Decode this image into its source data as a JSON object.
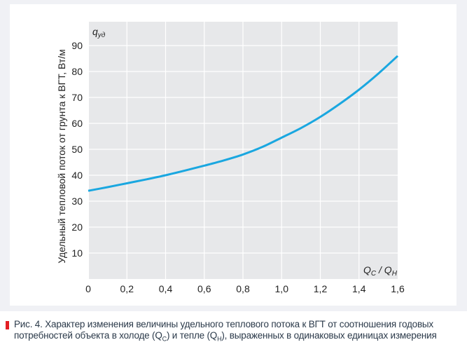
{
  "chart_data": {
    "type": "line",
    "ylabel": "Удельный тепловой поток от грунта к ВГТ, Вт/м",
    "y_axis_symbol": "q",
    "y_axis_symbol_sub": "уд",
    "x_axis_symbol": "Q",
    "x_axis_symbol_sub1": "C",
    "x_axis_symbol_sep": " / Q",
    "x_axis_symbol_sub2": "H",
    "xlim": [
      0,
      1.6
    ],
    "ylim": [
      0,
      95
    ],
    "xticks": [
      "0",
      "0,2",
      "0,4",
      "0,6",
      "0,8",
      "1,0",
      "1,2",
      "1,4",
      "1,6"
    ],
    "yticks": [
      "10",
      "20",
      "30",
      "40",
      "50",
      "60",
      "70",
      "80",
      "90"
    ],
    "grid": true,
    "color": "#1aa7e0",
    "series": [
      {
        "name": "q_уд",
        "x": [
          0,
          0.1,
          0.2,
          0.3,
          0.4,
          0.5,
          0.6,
          0.7,
          0.8,
          0.9,
          1.0,
          1.1,
          1.2,
          1.3,
          1.4,
          1.5,
          1.6
        ],
        "y": [
          34,
          35.4,
          36.9,
          38.4,
          40,
          41.8,
          43.7,
          45.7,
          48,
          50.9,
          54.5,
          58.2,
          62.5,
          67.5,
          73,
          79.2,
          86
        ]
      }
    ]
  },
  "caption": {
    "label": "Рис. 4.",
    "text_1": " Характер изменения величины удельного теплового потока к ВГТ от соотношения годовых потребностей объекта в холоде (Q",
    "sub_1": "C",
    "text_2": ") и тепле (Q",
    "sub_2": "H",
    "text_3": "), выраженных в одинаковых единицах измерения"
  }
}
